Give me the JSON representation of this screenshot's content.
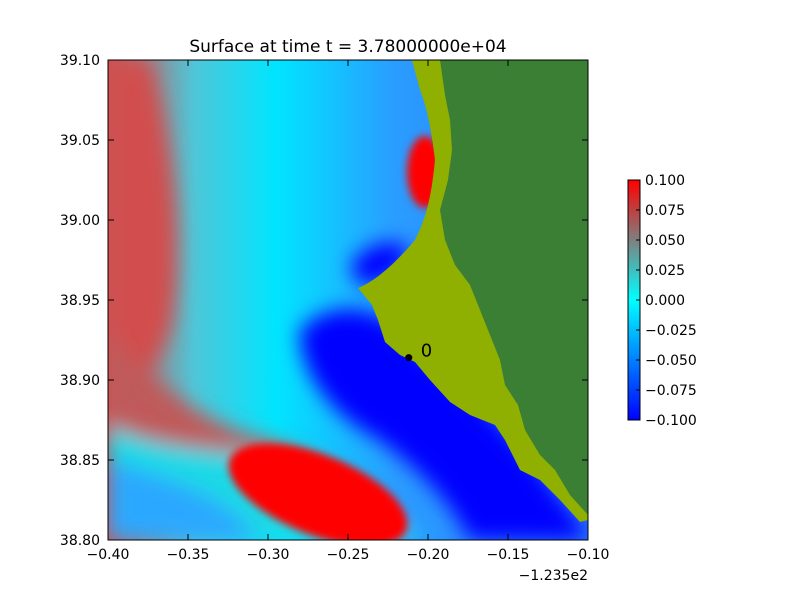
{
  "chart_data": {
    "type": "heatmap",
    "title": "Surface at time t = 3.78000000e+04",
    "xlabel": "",
    "ylabel": "",
    "x_offset_label": "−1.235e2",
    "xlim": [
      -0.4,
      -0.1
    ],
    "ylim": [
      38.8,
      39.1
    ],
    "x_ticks": [
      -0.4,
      -0.35,
      -0.3,
      -0.25,
      -0.2,
      -0.15,
      -0.1
    ],
    "x_tick_labels": [
      "−0.40",
      "−0.35",
      "−0.30",
      "−0.25",
      "−0.20",
      "−0.15",
      "−0.10"
    ],
    "y_ticks": [
      38.8,
      38.85,
      38.9,
      38.95,
      39.0,
      39.05,
      39.1
    ],
    "y_tick_labels": [
      "38.80",
      "38.85",
      "38.90",
      "38.95",
      "39.00",
      "39.05",
      "39.10"
    ],
    "colorbar": {
      "range": [
        -0.1,
        0.1
      ],
      "ticks": [
        0.1,
        0.075,
        0.05,
        0.025,
        0.0,
        -0.025,
        -0.05,
        -0.075,
        -0.1
      ],
      "tick_labels": [
        "0.100",
        "0.075",
        "0.050",
        "0.025",
        "0.000",
        "−0.025",
        "−0.050",
        "−0.075",
        "−0.100"
      ],
      "colors": [
        "#0000ff",
        "#00ffff",
        "#ff0000"
      ]
    },
    "land_colors": {
      "lowland": "#8fb000",
      "upland": "#3a7f34"
    },
    "gauges": [
      {
        "label": "0",
        "x": -0.212,
        "y": 38.914
      }
    ]
  }
}
